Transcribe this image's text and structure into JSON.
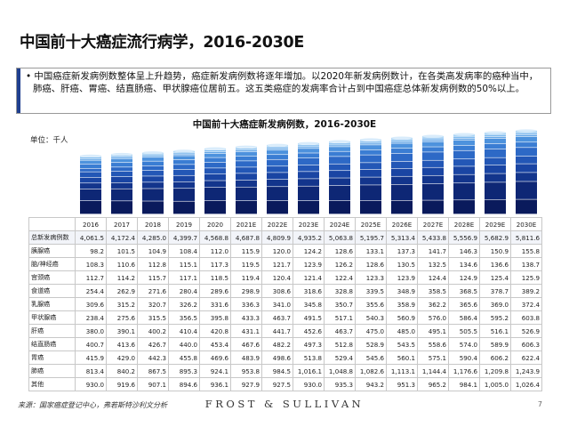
{
  "page": {
    "title": "中国前十大癌症流行病学，2016-2030E",
    "summary": "• 中国癌症新发病例数整体呈上升趋势，癌症新发病例数将逐年增加。以2020年新发病例数计，在各类高发病率的癌种当中，肺癌、肝癌、胃癌、结直肠癌、甲状腺癌位居前五。这五类癌症的发病率合计占到中国癌症总体新发病例数的50%以上。",
    "footnote": "来源：国家癌症登记中心，弗若斯特沙利文分析",
    "brand": "FROST & SULLIVAN",
    "page_number": "7"
  },
  "chart_data": {
    "type": "bar",
    "title": "中国前十大癌症新发病例数，2016-2030E",
    "unit_label": "单位：千人",
    "categories": [
      "2016",
      "2017",
      "2018",
      "2019",
      "2020",
      "2021E",
      "2022E",
      "2023E",
      "2024E",
      "2025E",
      "2026E",
      "2027E",
      "2028E",
      "2029E",
      "2030E"
    ],
    "stack_order": [
      "其他",
      "肺癌",
      "胃癌",
      "结直肠癌",
      "肝癌",
      "甲状腺癌",
      "乳腺癌",
      "食道癌",
      "宫颈癌",
      "脑/神经癌",
      "胰腺癌"
    ],
    "stack_colors": [
      "#0a1a5c",
      "#0e2775",
      "#13358c",
      "#1a45a3",
      "#2357b6",
      "#2d69c6",
      "#3a7dd3",
      "#4d92dd",
      "#64a6e6",
      "#80bbee",
      "#a0d0f5"
    ],
    "total": {
      "name": "总新发病例数",
      "values": [
        "4,061.5",
        "4,172.4",
        "4,285.0",
        "4,399.7",
        "4,568.8",
        "4,687.8",
        "4,809.9",
        "4,935.2",
        "5,063.8",
        "5,195.7",
        "5,313.4",
        "5,433.8",
        "5,556.9",
        "5,682.9",
        "5,811.6"
      ]
    },
    "series": [
      {
        "name": "胰腺癌",
        "values": [
          "98.2",
          "101.5",
          "104.9",
          "108.4",
          "112.0",
          "115.9",
          "120.0",
          "124.2",
          "128.6",
          "133.1",
          "137.3",
          "141.7",
          "146.3",
          "150.9",
          "155.8"
        ]
      },
      {
        "name": "脑/神经癌",
        "values": [
          "108.3",
          "110.6",
          "112.8",
          "115.1",
          "117.3",
          "119.5",
          "121.7",
          "123.9",
          "126.2",
          "128.6",
          "130.5",
          "132.5",
          "134.6",
          "136.6",
          "138.7"
        ]
      },
      {
        "name": "宫颈癌",
        "values": [
          "112.7",
          "114.2",
          "115.7",
          "117.1",
          "118.5",
          "119.4",
          "120.4",
          "121.4",
          "122.4",
          "123.3",
          "123.9",
          "124.4",
          "124.9",
          "125.4",
          "125.9"
        ]
      },
      {
        "name": "食道癌",
        "values": [
          "254.4",
          "262.9",
          "271.6",
          "280.4",
          "289.6",
          "298.9",
          "308.6",
          "318.6",
          "328.8",
          "339.5",
          "348.9",
          "358.5",
          "368.5",
          "378.7",
          "389.2"
        ]
      },
      {
        "name": "乳腺癌",
        "values": [
          "309.6",
          "315.2",
          "320.7",
          "326.2",
          "331.6",
          "336.3",
          "341.0",
          "345.8",
          "350.7",
          "355.6",
          "358.9",
          "362.2",
          "365.6",
          "369.0",
          "372.4"
        ]
      },
      {
        "name": "甲状腺癌",
        "values": [
          "238.4",
          "275.6",
          "315.5",
          "356.5",
          "395.8",
          "433.3",
          "463.7",
          "491.5",
          "517.1",
          "540.3",
          "560.9",
          "576.0",
          "586.4",
          "595.2",
          "603.8"
        ]
      },
      {
        "name": "肝癌",
        "values": [
          "380.0",
          "390.1",
          "400.2",
          "410.4",
          "420.8",
          "431.1",
          "441.7",
          "452.6",
          "463.7",
          "475.0",
          "485.0",
          "495.1",
          "505.5",
          "516.1",
          "526.9"
        ]
      },
      {
        "name": "结直肠癌",
        "values": [
          "400.7",
          "413.6",
          "426.7",
          "440.0",
          "453.4",
          "467.6",
          "482.2",
          "497.3",
          "512.8",
          "528.9",
          "543.5",
          "558.6",
          "574.0",
          "589.9",
          "606.3"
        ]
      },
      {
        "name": "胃癌",
        "values": [
          "415.9",
          "429.0",
          "442.3",
          "455.8",
          "469.6",
          "483.9",
          "498.6",
          "513.8",
          "529.4",
          "545.6",
          "560.1",
          "575.1",
          "590.4",
          "606.2",
          "622.4"
        ]
      },
      {
        "name": "肺癌",
        "values": [
          "813.4",
          "840.2",
          "867.5",
          "895.3",
          "924.1",
          "953.8",
          "984.5",
          "1,016.1",
          "1,048.8",
          "1,082.6",
          "1,113.1",
          "1,144.4",
          "1,176.6",
          "1,209.8",
          "1,243.9"
        ]
      },
      {
        "name": "其他",
        "values": [
          "930.0",
          "919.6",
          "907.1",
          "894.6",
          "936.1",
          "927.9",
          "927.5",
          "930.0",
          "935.3",
          "943.2",
          "951.3",
          "965.2",
          "984.1",
          "1,005.0",
          "1,026.4"
        ]
      }
    ]
  }
}
